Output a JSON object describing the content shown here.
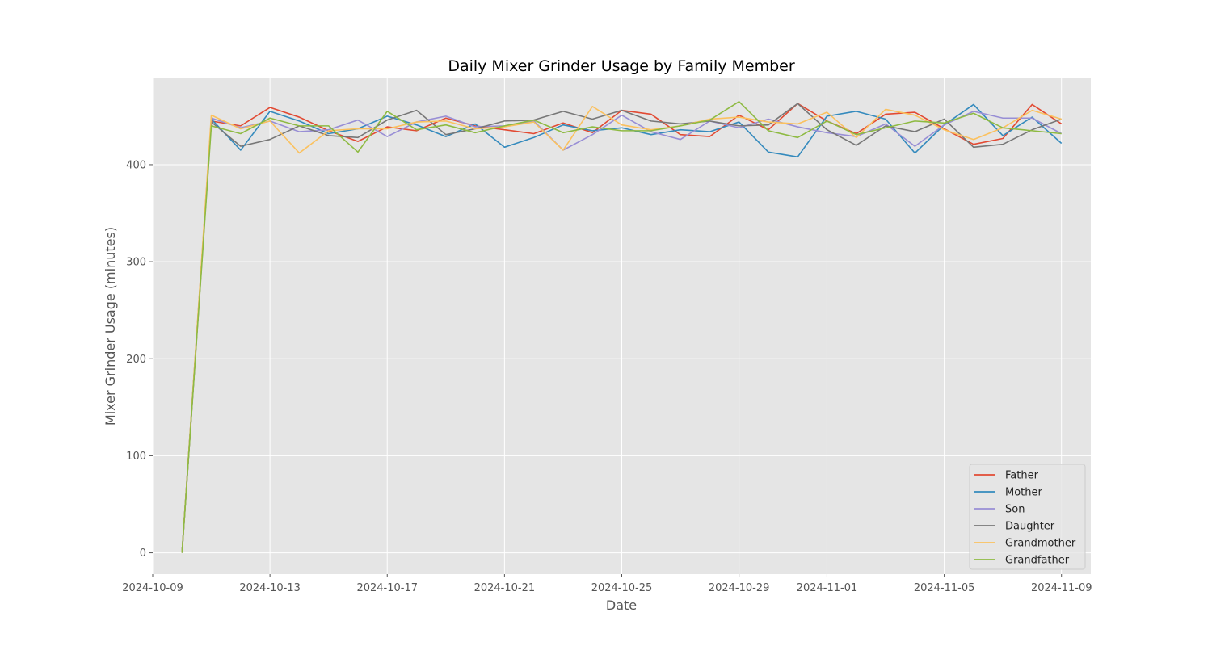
{
  "chart_data": {
    "type": "line",
    "title": "Daily Mixer Grinder Usage by Family Member",
    "xlabel": "Date",
    "ylabel": "Mixer Grinder Usage (minutes)",
    "grid": true,
    "legend_position": "lower-right",
    "xlim": [
      "2024-10-09",
      "2024-11-10"
    ],
    "ylim": [
      -22,
      489
    ],
    "x_ticks": [
      "2024-10-09",
      "2024-10-13",
      "2024-10-17",
      "2024-10-21",
      "2024-10-25",
      "2024-10-29",
      "2024-11-01",
      "2024-11-05",
      "2024-11-09"
    ],
    "y_ticks": [
      0,
      100,
      200,
      300,
      400
    ],
    "x": [
      "2024-10-10",
      "2024-10-11",
      "2024-10-12",
      "2024-10-13",
      "2024-10-14",
      "2024-10-15",
      "2024-10-16",
      "2024-10-17",
      "2024-10-18",
      "2024-10-19",
      "2024-10-20",
      "2024-10-21",
      "2024-10-22",
      "2024-10-23",
      "2024-10-24",
      "2024-10-25",
      "2024-10-26",
      "2024-10-27",
      "2024-10-28",
      "2024-10-29",
      "2024-10-30",
      "2024-10-31",
      "2024-11-01",
      "2024-11-02",
      "2024-11-03",
      "2024-11-04",
      "2024-11-05",
      "2024-11-06",
      "2024-11-07",
      "2024-11-08",
      "2024-11-09"
    ],
    "series": [
      {
        "name": "Father",
        "color": "#E24A33",
        "values": [
          0,
          445,
          440,
          459,
          449,
          435,
          424,
          439,
          435,
          448,
          440,
          436,
          432,
          443,
          433,
          456,
          452,
          431,
          429,
          451,
          436,
          463,
          445,
          432,
          452,
          454,
          437,
          421,
          427,
          462,
          442
        ]
      },
      {
        "name": "Mother",
        "color": "#348ABD",
        "values": [
          0,
          447,
          415,
          455,
          445,
          432,
          437,
          450,
          441,
          429,
          442,
          418,
          428,
          441,
          435,
          438,
          431,
          436,
          434,
          444,
          413,
          408,
          450,
          455,
          447,
          412,
          441,
          462,
          430,
          449,
          422
        ]
      },
      {
        "name": "Son",
        "color": "#988ED5",
        "values": [
          0,
          448,
          438,
          445,
          434,
          436,
          446,
          429,
          444,
          450,
          439,
          440,
          445,
          415,
          431,
          451,
          434,
          426,
          445,
          438,
          447,
          439,
          433,
          429,
          442,
          419,
          441,
          455,
          448,
          448,
          432
        ]
      },
      {
        "name": "Daughter",
        "color": "#777777",
        "values": [
          0,
          444,
          419,
          426,
          440,
          430,
          428,
          446,
          456,
          431,
          437,
          445,
          446,
          455,
          447,
          456,
          445,
          442,
          445,
          440,
          441,
          463,
          436,
          420,
          440,
          434,
          447,
          418,
          421,
          436,
          447
        ]
      },
      {
        "name": "Grandmother",
        "color": "#FBC15E",
        "values": [
          0,
          451,
          437,
          445,
          412,
          435,
          437,
          437,
          444,
          445,
          437,
          439,
          444,
          415,
          460,
          441,
          436,
          440,
          447,
          449,
          444,
          442,
          454,
          428,
          457,
          451,
          436,
          426,
          438,
          456,
          447
        ]
      },
      {
        "name": "Grandfather",
        "color": "#8EBA42",
        "values": [
          0,
          440,
          432,
          448,
          440,
          440,
          413,
          455,
          436,
          441,
          433,
          440,
          446,
          433,
          439,
          435,
          435,
          440,
          446,
          465,
          435,
          428,
          445,
          431,
          438,
          445,
          443,
          453,
          438,
          435,
          432
        ]
      }
    ]
  }
}
